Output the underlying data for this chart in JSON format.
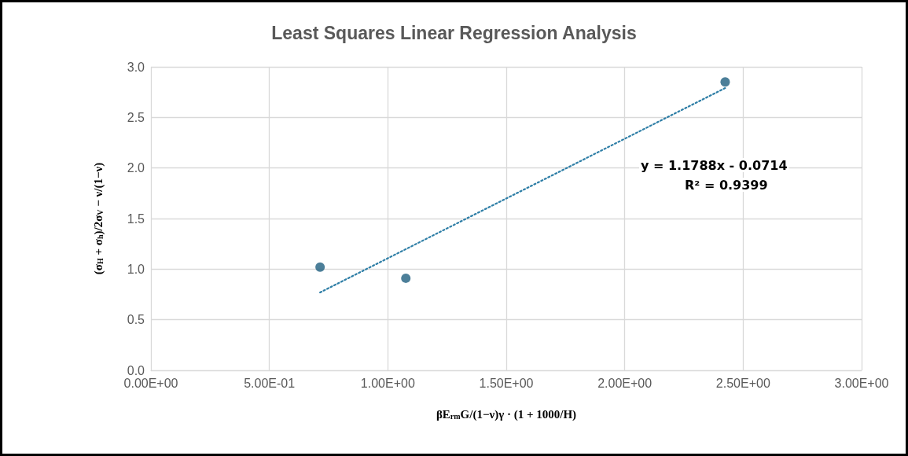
{
  "chart_data": {
    "type": "scatter",
    "title": "Least Squares Linear Regression Analysis",
    "xlabel": "βE$_{rm}$G/(1−ν)γ · (1 + 1000/H)",
    "ylabel": "(σ$_{H}$ + σ$_{h}$)/2σ$_{V}$ − ν/(1−ν)",
    "series": [
      {
        "color": "#1f5f80",
        "marker": "circle",
        "x": [
          0.714,
          1.076,
          2.424
        ],
        "values": [
          1.02,
          0.91,
          2.85
        ]
      },
      {
        "type": "line",
        "color": "#2e7ea6",
        "marker": "none",
        "line_style": "dotted",
        "x": [
          0.714,
          2.424
        ],
        "values": [
          0.77,
          2.79
        ]
      }
    ],
    "annotations": [
      "y = 1.1788x - 0.0714",
      "R² = 0.9399"
    ],
    "xlim": [
      0,
      3
    ],
    "ylim": [
      0,
      3
    ],
    "xticks": [
      {
        "value": 0,
        "label": "0.00E+00"
      },
      {
        "value": 0.5,
        "label": "5.00E-01"
      },
      {
        "value": 1,
        "label": "1.00E+00"
      },
      {
        "value": 1.5,
        "label": "1.50E+00"
      },
      {
        "value": 2,
        "label": "2.00E+00"
      },
      {
        "value": 2.5,
        "label": "2.50E+00"
      },
      {
        "value": 3,
        "label": "3.00E+00"
      }
    ],
    "yticks": [
      {
        "value": 0,
        "label": "0.0"
      },
      {
        "value": 0.5,
        "label": "0.5"
      },
      {
        "value": 1,
        "label": "1.0"
      },
      {
        "value": 1.5,
        "label": "1.5"
      },
      {
        "value": 2,
        "label": "2.0"
      },
      {
        "value": 2.5,
        "label": "2.5"
      },
      {
        "value": 3,
        "label": "3.0"
      }
    ],
    "grid": true
  }
}
